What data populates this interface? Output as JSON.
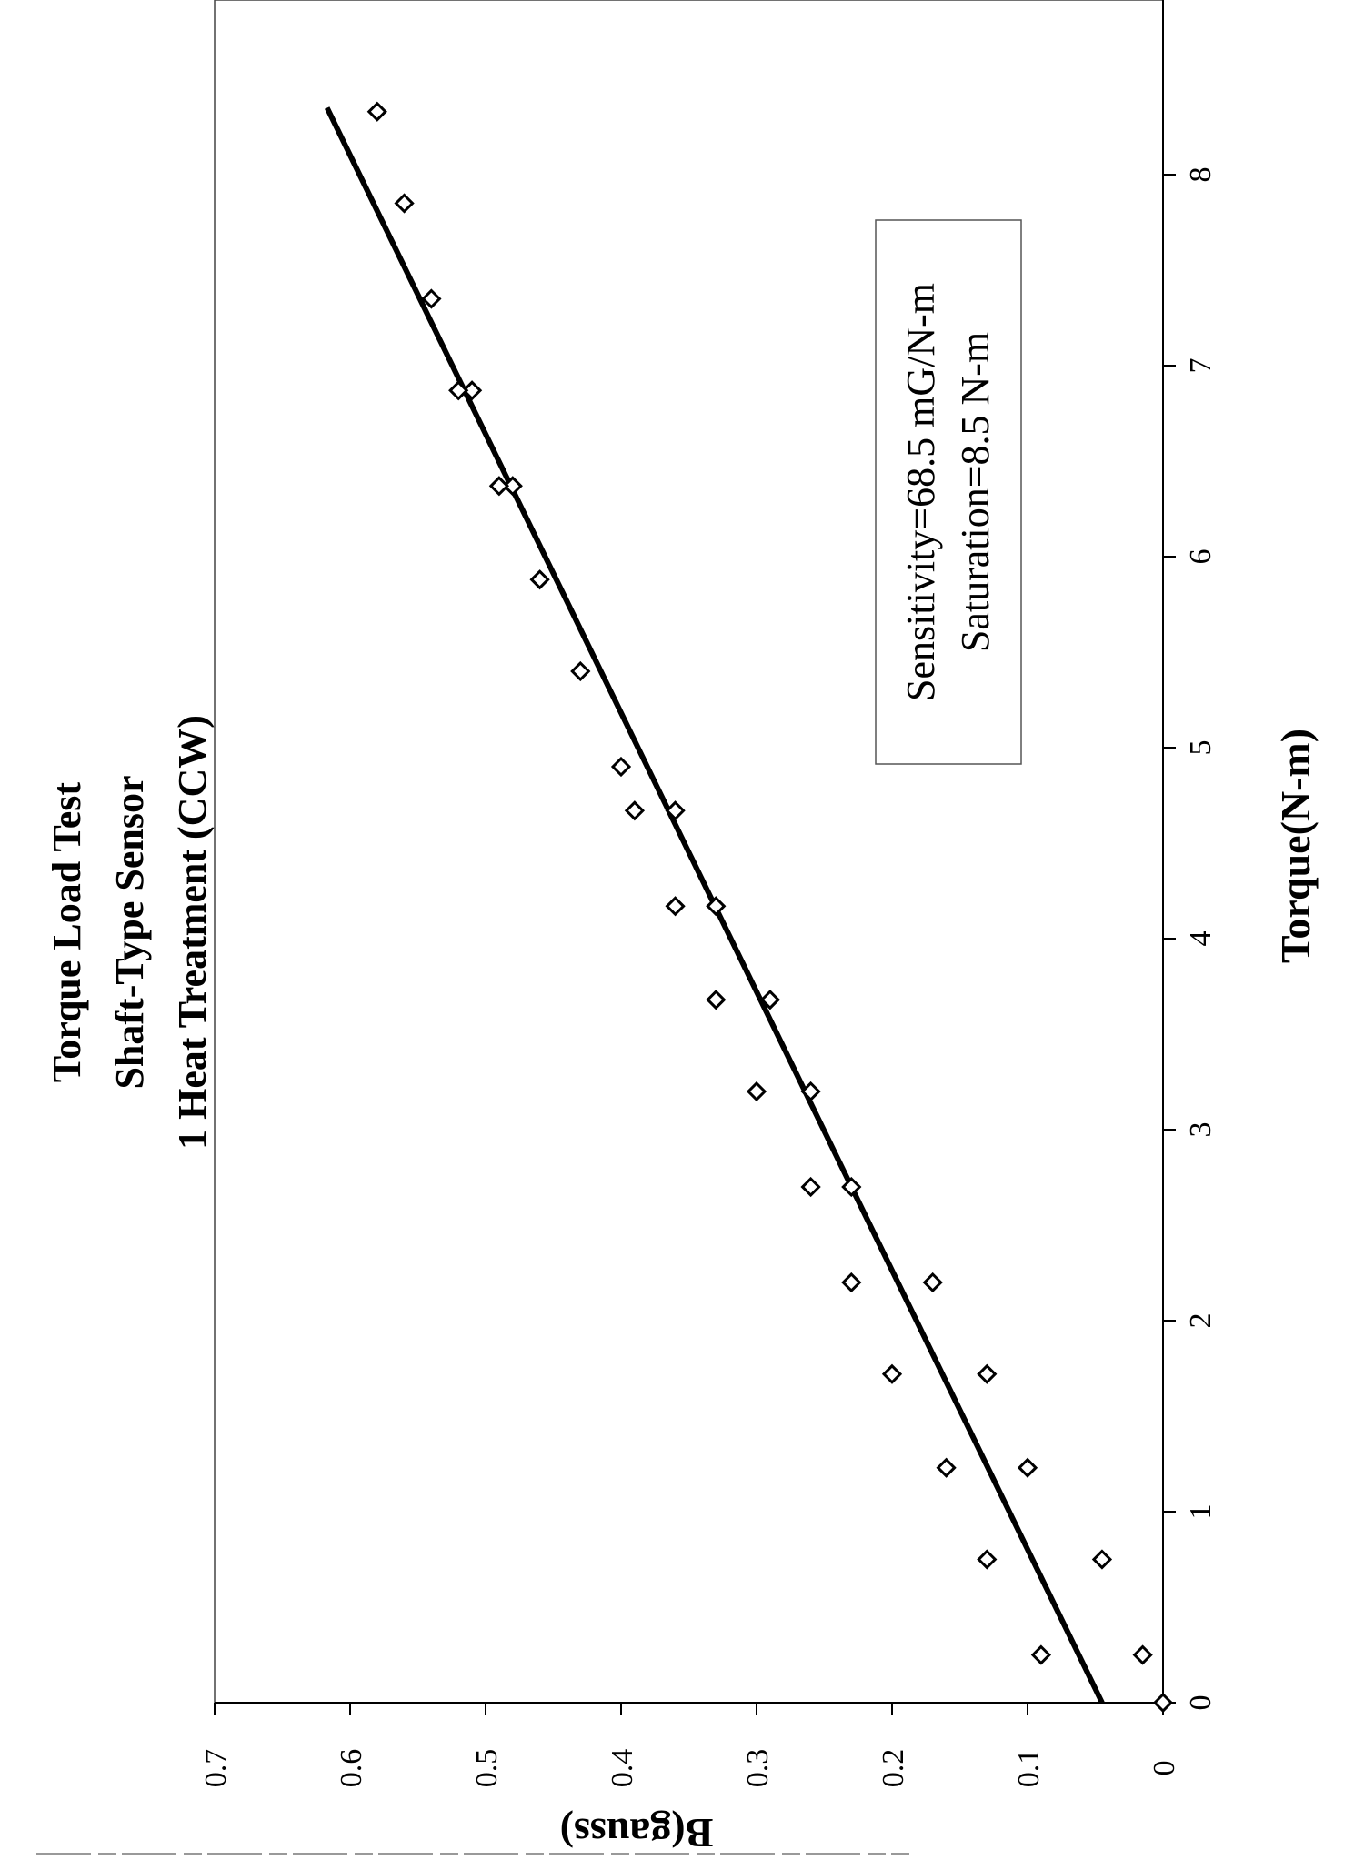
{
  "chart_data": {
    "type": "scatter",
    "title": [
      "Torque Load Test",
      "Shaft-Type Sensor",
      "1 Heat Treatment (CCW)"
    ],
    "xlabel": "Torque(N-m)",
    "ylabel": "B(gauss)",
    "xlim": [
      0,
      9
    ],
    "ylim": [
      0,
      0.7
    ],
    "x_ticks": [
      "0",
      "1",
      "2",
      "3",
      "4",
      "5",
      "6",
      "7",
      "8"
    ],
    "y_ticks": [
      "0",
      "0.1",
      "0.2",
      "0.3",
      "0.4",
      "0.5",
      "0.6",
      "0.7"
    ],
    "grid": false,
    "orientation": "rotated-90-ccw",
    "series": [
      {
        "marker": "open-diamond",
        "x": [
          0.0,
          0.25,
          0.25,
          0.75,
          0.75,
          1.23,
          1.23,
          1.72,
          1.72,
          2.2,
          2.2,
          2.7,
          2.7,
          3.2,
          3.2,
          3.68,
          3.68,
          4.17,
          4.17,
          4.67,
          4.67,
          4.9,
          5.4,
          5.88,
          6.37,
          6.37,
          6.87,
          6.87,
          7.35,
          7.85,
          8.33
        ],
        "y": [
          0.0,
          0.015,
          0.09,
          0.045,
          0.13,
          0.1,
          0.16,
          0.13,
          0.2,
          0.17,
          0.23,
          0.23,
          0.26,
          0.26,
          0.3,
          0.29,
          0.33,
          0.33,
          0.36,
          0.36,
          0.39,
          0.4,
          0.43,
          0.46,
          0.48,
          0.49,
          0.51,
          0.52,
          0.54,
          0.56,
          0.58
        ]
      }
    ],
    "trendline": {
      "x": [
        0.0,
        8.35
      ],
      "y": [
        0.045,
        0.617
      ]
    },
    "annotation": [
      "Sensitivity=68.5 mG/N-m",
      "Saturation=8.5 N-m"
    ]
  }
}
